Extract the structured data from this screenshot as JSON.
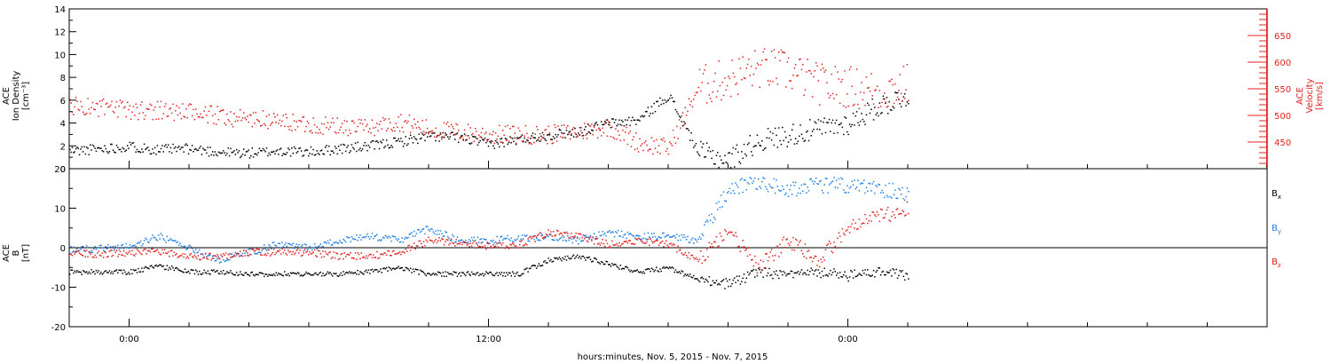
{
  "chart_data": [
    {
      "type": "scatter",
      "panel": "top",
      "ylabel_left": [
        "ACE",
        "Ion Density",
        "[cm⁻³]"
      ],
      "ylabel_right": [
        "ACE",
        "Velocity",
        "[km/s]"
      ],
      "ylim_left": [
        0,
        14
      ],
      "yticks_left": [
        "0",
        "2",
        "4",
        "6",
        "8",
        "10",
        "12",
        "14"
      ],
      "ylim_right": [
        400,
        700
      ],
      "yticks_right": [
        "450",
        "500",
        "550",
        "600",
        "650"
      ],
      "right_axis_color": "#e02020",
      "xlim_hours": [
        -2,
        38
      ],
      "series": [
        {
          "axis": "left",
          "color": "#000000",
          "x": [
            -2,
            -1,
            0,
            1,
            2,
            3,
            4,
            5,
            6,
            7,
            8,
            9,
            10,
            11,
            12,
            13,
            14,
            15,
            16,
            17,
            18,
            19,
            20,
            21,
            22,
            23,
            24,
            25,
            26
          ],
          "values": [
            1.6,
            1.8,
            2.0,
            1.7,
            1.8,
            1.5,
            1.4,
            1.6,
            1.5,
            1.8,
            2.0,
            2.4,
            2.9,
            2.8,
            2.2,
            2.6,
            3.0,
            3.3,
            4.0,
            4.3,
            6.5,
            1.5,
            0.8,
            2.5,
            3.0,
            3.5,
            4.0,
            5.5,
            6.5
          ]
        },
        {
          "axis": "right",
          "color": "#e02020",
          "x": [
            -2,
            -1,
            0,
            1,
            2,
            3,
            4,
            5,
            6,
            7,
            8,
            9,
            10,
            11,
            12,
            13,
            14,
            15,
            16,
            17,
            18,
            19,
            20,
            21,
            22,
            23,
            24,
            25,
            26
          ],
          "values": [
            520,
            515,
            510,
            512,
            505,
            500,
            495,
            490,
            485,
            480,
            478,
            490,
            475,
            470,
            465,
            465,
            465,
            470,
            480,
            450,
            440,
            555,
            570,
            590,
            585,
            560,
            555,
            545,
            560
          ]
        }
      ]
    },
    {
      "type": "scatter",
      "panel": "bottom",
      "ylabel_left": [
        "ACE",
        "B",
        "[nT]"
      ],
      "ylim": [
        -20,
        20
      ],
      "yticks": [
        "-20",
        "-10",
        "0",
        "10",
        "20"
      ],
      "legend": [
        {
          "label": "B",
          "sub": "x",
          "color": "#000000"
        },
        {
          "label": "B",
          "sub": "y",
          "color": "#1f7fe0"
        },
        {
          "label": "B",
          "sub": "z",
          "color": "#e02020"
        }
      ],
      "xlim_hours": [
        -2,
        38
      ],
      "series": [
        {
          "color": "#000000",
          "x": [
            -2,
            -1,
            0,
            1,
            2,
            3,
            4,
            5,
            6,
            7,
            8,
            9,
            10,
            11,
            12,
            13,
            14,
            15,
            16,
            17,
            18,
            19,
            20,
            21,
            22,
            23,
            24,
            25,
            26
          ],
          "values": [
            -6,
            -6,
            -6,
            -4.5,
            -6,
            -6,
            -6.5,
            -6.5,
            -6.5,
            -6.5,
            -6,
            -5,
            -6.5,
            -6.5,
            -6.5,
            -6.5,
            -3,
            -2,
            -4,
            -6,
            -5,
            -8,
            -9,
            -6,
            -7,
            -6,
            -7,
            -6,
            -7
          ]
        },
        {
          "color": "#1f7fe0",
          "x": [
            -2,
            -1,
            0,
            1,
            2,
            3,
            4,
            5,
            6,
            7,
            8,
            9,
            10,
            11,
            12,
            13,
            14,
            15,
            16,
            17,
            18,
            19,
            20,
            21,
            22,
            23,
            24,
            25,
            26
          ],
          "values": [
            -0.5,
            0,
            0.5,
            3,
            0,
            -3,
            -1,
            1,
            0,
            2,
            3,
            2,
            5,
            2,
            2,
            2.5,
            3,
            2,
            4,
            3,
            3,
            2,
            15,
            17,
            15,
            16,
            16,
            15,
            14
          ]
        },
        {
          "color": "#e02020",
          "x": [
            -2,
            -1,
            0,
            1,
            2,
            3,
            4,
            5,
            6,
            7,
            8,
            9,
            10,
            11,
            12,
            13,
            14,
            15,
            16,
            17,
            18,
            19,
            20,
            21,
            22,
            23,
            24,
            25,
            26
          ],
          "values": [
            -1,
            -1.5,
            -1,
            -1,
            -2,
            -2,
            -1,
            -1,
            -1,
            -2,
            -2,
            -1,
            2,
            1.5,
            0.5,
            1,
            4,
            3,
            1,
            2,
            1,
            -3,
            5,
            -5,
            2,
            -3,
            5,
            8,
            10
          ]
        }
      ]
    }
  ],
  "x_axis": {
    "tick_hours": [
      0,
      12,
      24
    ],
    "tick_labels": [
      "0:00",
      "12:00",
      "0:00"
    ],
    "title": "hours:minutes, Nov.  5, 2015 - Nov.  7, 2015"
  }
}
